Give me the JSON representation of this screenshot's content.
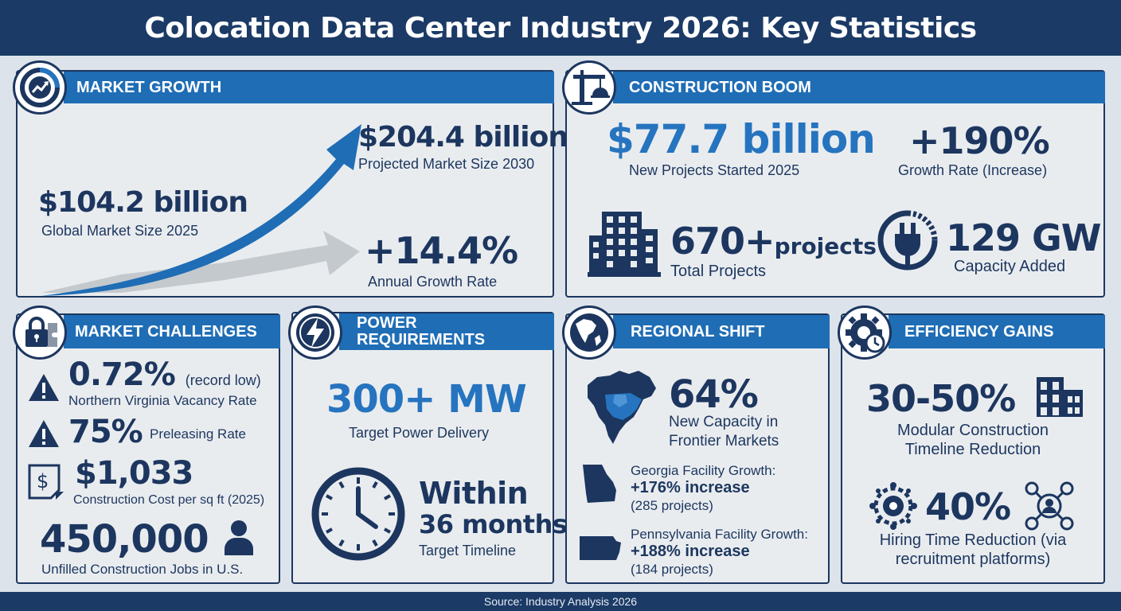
{
  "header": {
    "title": "Colocation Data Center Industry 2026: Key Statistics"
  },
  "footer": {
    "source": "Source: Industry Analysis 2026"
  },
  "market_growth": {
    "heading": "MARKET GROWTH",
    "icon": "growth-chart-icon",
    "current_value": "$104.2 billion",
    "current_label": "Global Market Size 2025",
    "projected_value": "$204.4 billion",
    "projected_label": "Projected Market Size 2030",
    "growth_value": "+14.4%",
    "growth_label": "Annual Growth Rate"
  },
  "construction_boom": {
    "heading": "CONSTRUCTION BOOM",
    "icon": "crane-icon",
    "started_value": "$77.7 billion",
    "started_label": "New Projects Started 2025",
    "growth_value": "+190%",
    "growth_label": "Growth Rate (Increase)",
    "projects_value": "670+",
    "projects_unit": "projects",
    "projects_label": "Total Projects",
    "capacity_value": "129 GW",
    "capacity_label": "Capacity Added"
  },
  "market_challenges": {
    "heading": "MARKET CHALLENGES",
    "icon": "lock-puzzle-icon",
    "vacancy_value": "0.72%",
    "vacancy_note": "(record low)",
    "vacancy_label": "Northern Virginia Vacancy Rate",
    "preleasing_value": "75%",
    "preleasing_label": "Preleasing Rate",
    "cost_value": "$1,033",
    "cost_label": "Construction Cost per sq ft (2025)",
    "jobs_value": "450,000",
    "jobs_label": "Unfilled Construction Jobs in U.S."
  },
  "power_requirements": {
    "heading_line1": "POWER",
    "heading_line2": "REQUIREMENTS",
    "icon": "lightning-icon",
    "power_value": "300+ MW",
    "power_label": "Target Power Delivery",
    "timeline_line1": "Within",
    "timeline_line2": "36 months",
    "timeline_label": "Target Timeline"
  },
  "regional_shift": {
    "heading": "REGIONAL SHIFT",
    "icon": "globe-americas-icon",
    "frontier_value": "64%",
    "frontier_label_line1": "New Capacity in",
    "frontier_label_line2": "Frontier Markets",
    "georgia_title": "Georgia Facility Growth:",
    "georgia_value": "+176% increase",
    "georgia_note": "(285 projects)",
    "penn_title": "Pennsylvania Facility Growth:",
    "penn_value": "+188% increase",
    "penn_note": "(184 projects)"
  },
  "efficiency_gains": {
    "heading": "EFFICIENCY GAINS",
    "icon": "gear-clock-icon",
    "modular_value": "30-50%",
    "modular_label_line1": "Modular Construction",
    "modular_label_line2": "Timeline Reduction",
    "hiring_value": "40%",
    "hiring_label_line1": "Hiring Time Reduction (via",
    "hiring_label_line2": "recruitment platforms)"
  },
  "colors": {
    "navy": "#1c365f",
    "accent_blue": "#1f6db5",
    "bright_blue": "#2674bf",
    "panel_bg": "#e9ecef"
  }
}
